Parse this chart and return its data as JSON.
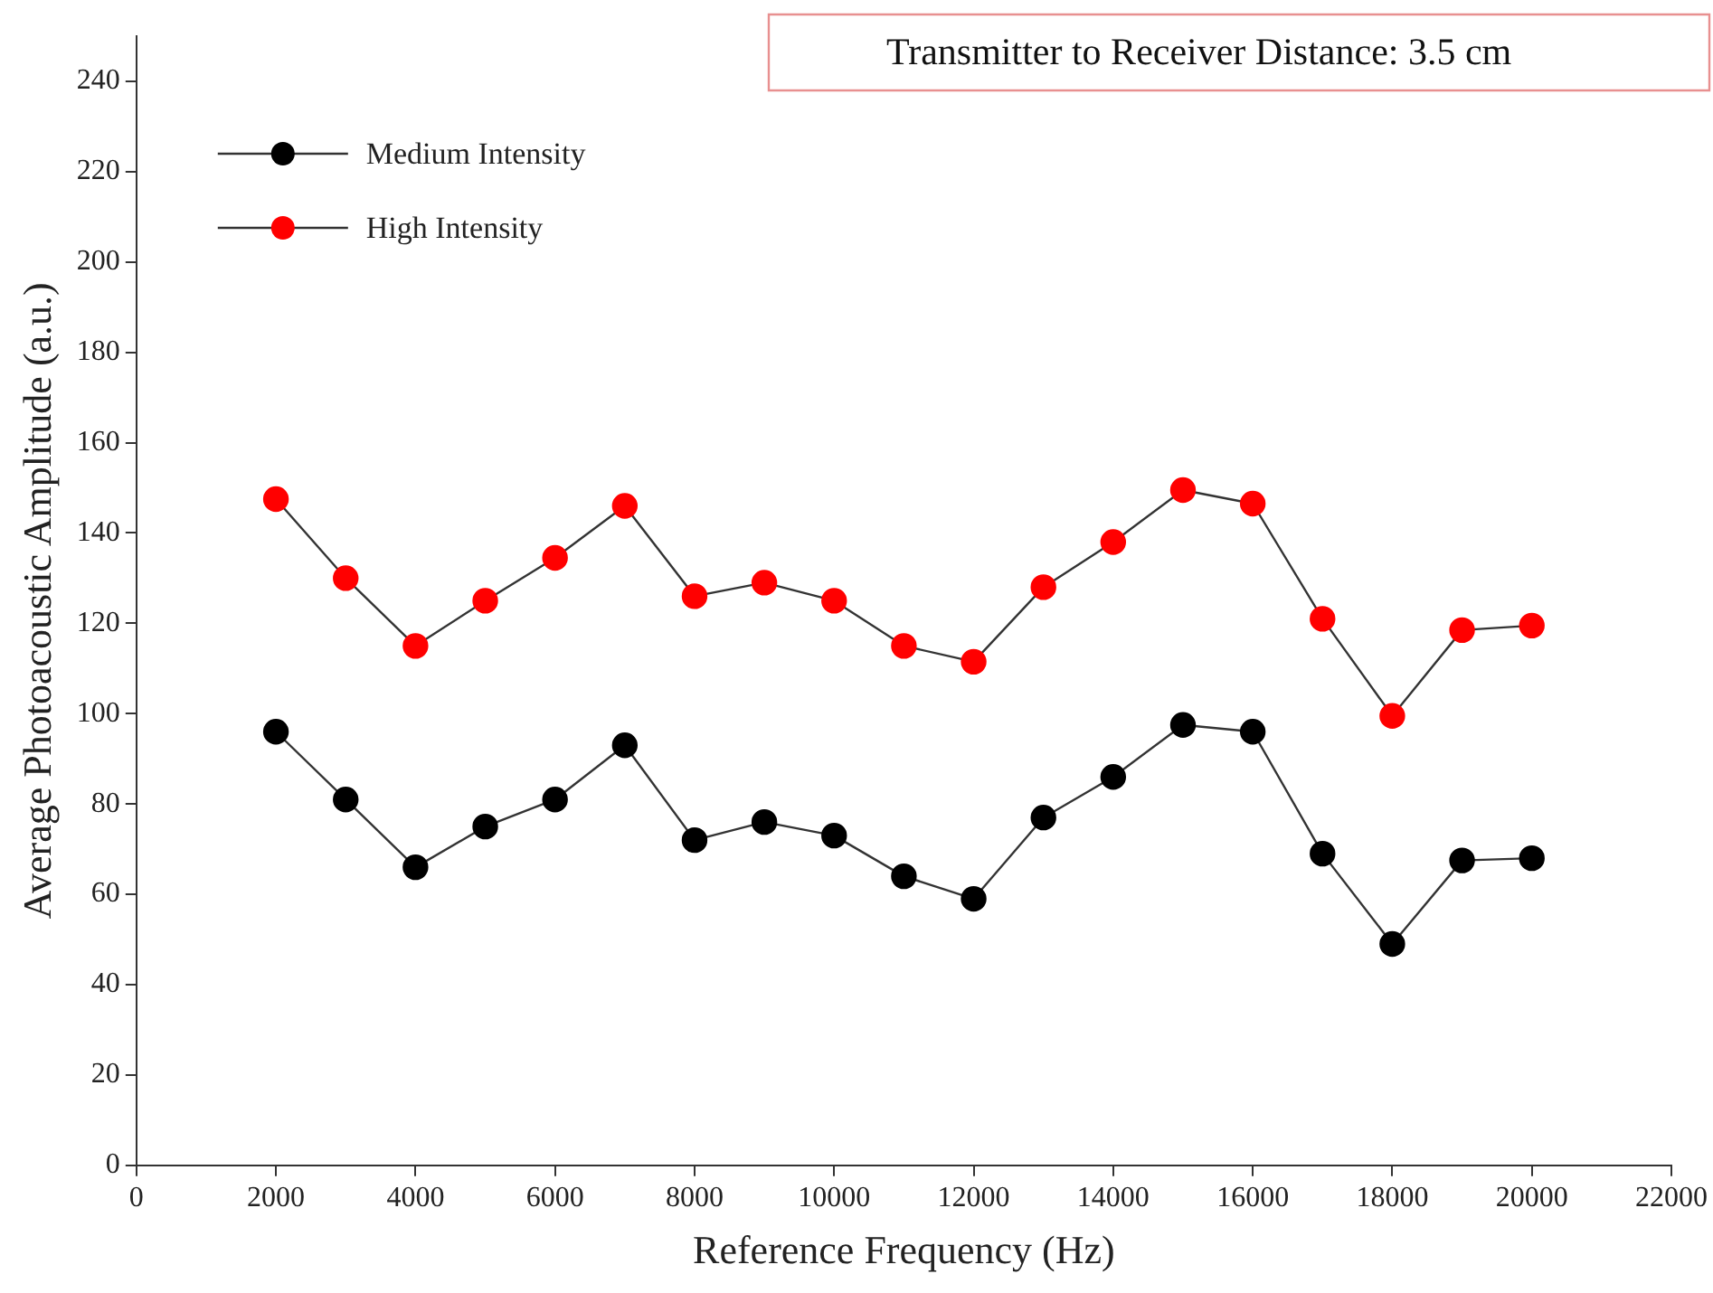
{
  "chart_data": {
    "type": "line",
    "xlabel": "Reference Frequency (Hz)",
    "ylabel": "Average Photoacoustic Amplitude (a.u.)",
    "annotations": [
      "Transmitter to Receiver Distance: 3.5 cm"
    ],
    "x": [
      2000,
      3000,
      4000,
      5000,
      6000,
      7000,
      8000,
      9000,
      10000,
      11000,
      12000,
      13000,
      14000,
      15000,
      16000,
      17000,
      18000,
      19000,
      20000
    ],
    "series": [
      {
        "name": "Medium Intensity",
        "color": "#000000",
        "values": [
          96,
          81,
          66,
          75,
          81,
          93,
          72,
          76,
          73,
          64,
          59,
          77,
          86,
          97.5,
          96,
          69,
          49,
          67.5,
          68
        ]
      },
      {
        "name": "High Intensity",
        "color": "#ff0000",
        "values": [
          147.5,
          130,
          115,
          125,
          134.5,
          146,
          126,
          129,
          125,
          115,
          111.5,
          128,
          138,
          149.5,
          146.5,
          121,
          99.5,
          118.5,
          119.5
        ]
      }
    ],
    "xlim": [
      0,
      22000
    ],
    "xticks": [
      0,
      2000,
      4000,
      6000,
      8000,
      10000,
      12000,
      14000,
      16000,
      18000,
      20000,
      22000
    ],
    "ylim": [
      0,
      250
    ],
    "yticks": [
      0,
      20,
      40,
      60,
      80,
      100,
      120,
      140,
      160,
      180,
      200,
      220,
      240
    ],
    "grid": false,
    "legend": "top left",
    "marker": "circle",
    "line_style": "solid"
  }
}
